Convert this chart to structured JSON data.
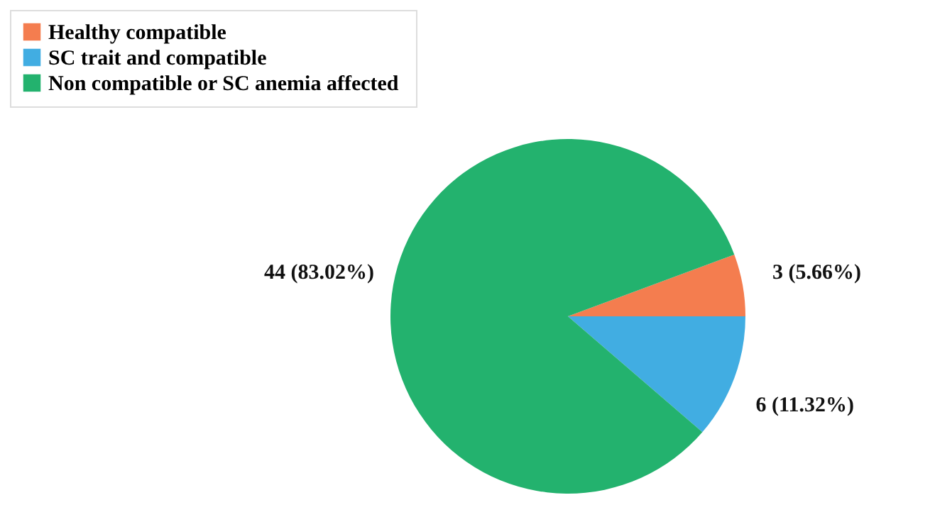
{
  "chart_data": {
    "type": "pie",
    "categories": [
      "Healthy compatible",
      "SC trait and compatible",
      "Non  compatible or SC anemia affected"
    ],
    "values": [
      3,
      6,
      44
    ],
    "colors": [
      "#f47d4f",
      "#41ade2",
      "#23b26e"
    ],
    "value_labels": [
      "3 (5.66%)",
      "6 (11.32%)",
      "44 (83.02%)"
    ],
    "legend": "top left"
  }
}
